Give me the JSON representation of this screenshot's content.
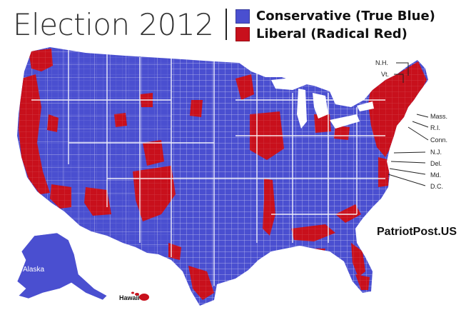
{
  "header": {
    "title": "Election 2012"
  },
  "legend": [
    {
      "label": "Conservative (True Blue)",
      "color": "#4a4fd0"
    },
    {
      "label": "Liberal (Radical Red)",
      "color": "#c8101c"
    }
  ],
  "colors": {
    "conservative": "#4a4fd0",
    "liberal": "#c8101c",
    "county_lines": "#ffffff"
  },
  "map": {
    "watermark": "PatriotPost.US",
    "alaska_label": "Alaska",
    "hawaii_label": "Hawaii",
    "state_labels": [
      "N.H.",
      "Vt.",
      "Mass.",
      "R.I.",
      "Conn.",
      "N.J.",
      "Del.",
      "Md.",
      "D.C."
    ]
  }
}
